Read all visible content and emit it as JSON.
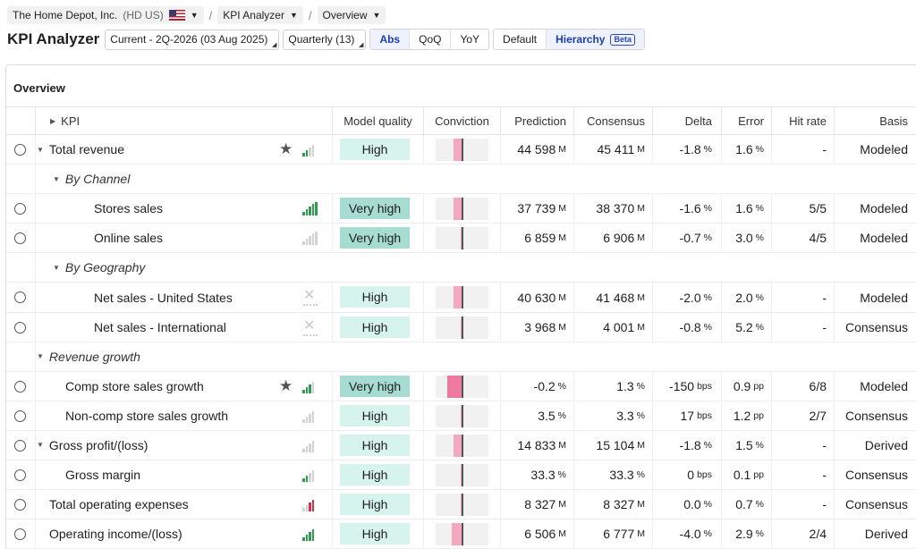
{
  "breadcrumb": {
    "company": "The Home Depot, Inc.",
    "ticker": "(HD US)",
    "app": "KPI Analyzer",
    "view": "Overview"
  },
  "toolbar": {
    "title": "KPI Analyzer",
    "period": "Current - 2Q-2026 (03 Aug 2025)",
    "frequency": "Quarterly (13)",
    "modes": [
      "Abs",
      "QoQ",
      "YoY"
    ],
    "active_mode": "Abs",
    "layouts": [
      "Default",
      "Hierarchy"
    ],
    "beta": "Beta"
  },
  "panel": {
    "title": "Overview"
  },
  "columns": {
    "kpi": "KPI",
    "mq": "Model quality",
    "conv": "Conviction",
    "pred": "Prediction",
    "cons": "Consensus",
    "delta": "Delta",
    "err": "Error",
    "hit": "Hit rate",
    "basis": "Basis"
  },
  "colors": {
    "high": "#d6f3ed",
    "very_high": "#a7dcd2",
    "conviction": "#f4a8c0",
    "conviction_strong": "#ee7aa0",
    "bar_green": "#2e9b4e",
    "bar_grey": "#d3d3d3",
    "bar_red": "#d1334f",
    "accent": "#1c3fb0"
  },
  "rows": [
    {
      "type": "kpi",
      "label": "Total revenue",
      "indent": 1,
      "expand": true,
      "star": true,
      "icon": "bars",
      "bars": [
        "g",
        "g",
        "n",
        "n"
      ],
      "mq": "High",
      "conv": {
        "dir": "left",
        "w": 10
      },
      "pred": "44 598",
      "pred_u": "M",
      "cons": "45 411",
      "cons_u": "M",
      "delta": "-1.8",
      "delta_u": "%",
      "err": "1.6",
      "err_u": "%",
      "hit": "-",
      "basis": "Modeled"
    },
    {
      "type": "group",
      "label": "By Channel",
      "indent": 2
    },
    {
      "type": "kpi",
      "label": "Stores sales",
      "indent": 3,
      "icon": "bars",
      "bars": [
        "g",
        "g",
        "g",
        "g",
        "g"
      ],
      "mq": "Very high",
      "conv": {
        "dir": "left",
        "w": 10
      },
      "pred": "37 739",
      "pred_u": "M",
      "cons": "38 370",
      "cons_u": "M",
      "delta": "-1.6",
      "delta_u": "%",
      "err": "1.6",
      "err_u": "%",
      "hit": "5/5",
      "basis": "Modeled"
    },
    {
      "type": "kpi",
      "label": "Online sales",
      "indent": 3,
      "icon": "bars",
      "bars": [
        "n",
        "n",
        "n",
        "n",
        "n"
      ],
      "mq": "Very high",
      "conv": {
        "dir": "left",
        "w": 2
      },
      "pred": "6 859",
      "pred_u": "M",
      "cons": "6 906",
      "cons_u": "M",
      "delta": "-0.7",
      "delta_u": "%",
      "err": "3.0",
      "err_u": "%",
      "hit": "4/5",
      "basis": "Modeled"
    },
    {
      "type": "group",
      "label": "By Geography",
      "indent": 2
    },
    {
      "type": "kpi",
      "label": "Net sales - United States",
      "indent": 3,
      "icon": "x",
      "mq": "High",
      "conv": {
        "dir": "left",
        "w": 10
      },
      "pred": "40 630",
      "pred_u": "M",
      "cons": "41 468",
      "cons_u": "M",
      "delta": "-2.0",
      "delta_u": "%",
      "err": "2.0",
      "err_u": "%",
      "hit": "-",
      "basis": "Modeled"
    },
    {
      "type": "kpi",
      "label": "Net sales - International",
      "indent": 3,
      "icon": "x",
      "mq": "High",
      "conv": {
        "dir": "left",
        "w": 2
      },
      "pred": "3 968",
      "pred_u": "M",
      "cons": "4 001",
      "cons_u": "M",
      "delta": "-0.8",
      "delta_u": "%",
      "err": "5.2",
      "err_u": "%",
      "hit": "-",
      "basis": "Consensus"
    },
    {
      "type": "group",
      "label": "Revenue growth",
      "indent": 1
    },
    {
      "type": "kpi",
      "label": "Comp store sales growth",
      "indent": 2,
      "star": true,
      "icon": "bars",
      "bars": [
        "g",
        "g",
        "g",
        "n"
      ],
      "mq": "Very high",
      "conv": {
        "dir": "left",
        "w": 17,
        "strong": true
      },
      "pred": "-0.2",
      "pred_u": "%",
      "cons": "1.3",
      "cons_u": "%",
      "delta": "-150",
      "delta_u": "bps",
      "err": "0.9",
      "err_u": "pp",
      "hit": "6/8",
      "basis": "Modeled"
    },
    {
      "type": "kpi",
      "label": "Non-comp store sales growth",
      "indent": 2,
      "icon": "bars",
      "bars": [
        "n",
        "n",
        "n",
        "n"
      ],
      "mq": "High",
      "conv": {
        "dir": "left",
        "w": 2
      },
      "pred": "3.5",
      "pred_u": "%",
      "cons": "3.3",
      "cons_u": "%",
      "delta": "17",
      "delta_u": "bps",
      "err": "1.2",
      "err_u": "pp",
      "hit": "2/7",
      "basis": "Consensus"
    },
    {
      "type": "kpi",
      "label": "Gross profit/(loss)",
      "indent": 1,
      "expand": true,
      "icon": "bars",
      "bars": [
        "n",
        "n",
        "n",
        "n"
      ],
      "mq": "High",
      "conv": {
        "dir": "left",
        "w": 10
      },
      "pred": "14 833",
      "pred_u": "M",
      "cons": "15 104",
      "cons_u": "M",
      "delta": "-1.8",
      "delta_u": "%",
      "err": "1.5",
      "err_u": "%",
      "hit": "-",
      "basis": "Derived"
    },
    {
      "type": "kpi",
      "label": "Gross margin",
      "indent": 2,
      "icon": "bars",
      "bars": [
        "g",
        "g",
        "n",
        "n"
      ],
      "mq": "High",
      "conv": {
        "dir": "left",
        "w": 2
      },
      "pred": "33.3",
      "pred_u": "%",
      "cons": "33.3",
      "cons_u": "%",
      "delta": "0",
      "delta_u": "bps",
      "err": "0.1",
      "err_u": "pp",
      "hit": "-",
      "basis": "Consensus"
    },
    {
      "type": "kpi",
      "label": "Total operating expenses",
      "indent": 1,
      "icon": "bars",
      "bars": [
        "n",
        "n",
        "r",
        "r"
      ],
      "mq": "High",
      "conv": {
        "dir": "left",
        "w": 2
      },
      "pred": "8 327",
      "pred_u": "M",
      "cons": "8 327",
      "cons_u": "M",
      "delta": "0.0",
      "delta_u": "%",
      "err": "0.7",
      "err_u": "%",
      "hit": "-",
      "basis": "Consensus"
    },
    {
      "type": "kpi",
      "label": "Operating income/(loss)",
      "indent": 1,
      "icon": "bars",
      "bars": [
        "g",
        "g",
        "g",
        "g"
      ],
      "mq": "High",
      "conv": {
        "dir": "left",
        "w": 12
      },
      "pred": "6 506",
      "pred_u": "M",
      "cons": "6 777",
      "cons_u": "M",
      "delta": "-4.0",
      "delta_u": "%",
      "err": "2.9",
      "err_u": "%",
      "hit": "2/4",
      "basis": "Derived"
    }
  ]
}
